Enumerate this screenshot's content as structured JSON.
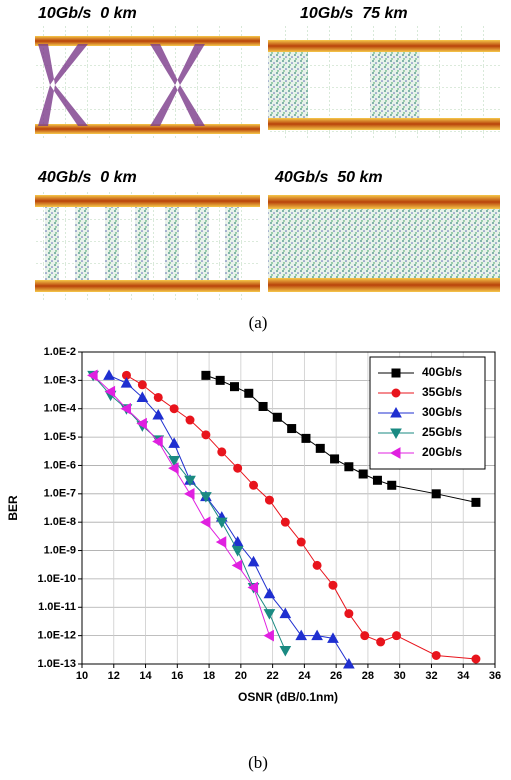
{
  "panels": [
    {
      "label": "10Gb/s  0 km"
    },
    {
      "label": "10Gb/s  75 km"
    },
    {
      "label": "40Gb/s  0 km"
    },
    {
      "label": "40Gb/s  50 km"
    }
  ],
  "captions": [
    "(a)",
    "(b)"
  ],
  "chart_data": {
    "type": "line",
    "y_label": "BER",
    "x_label": "OSNR (dB/0.1nm)",
    "xlim": [
      10,
      36
    ],
    "xticks": [
      10,
      12,
      14,
      16,
      18,
      20,
      22,
      24,
      26,
      28,
      30,
      32,
      34,
      36
    ],
    "ylim": [
      1e-13,
      0.01
    ],
    "log_y": true,
    "grid": true,
    "legend": "top-right",
    "yticks": [
      {
        "value": 0.01,
        "label": "1.0E-2"
      },
      {
        "value": 0.001,
        "label": "1.0E-3"
      },
      {
        "value": 0.0001,
        "label": "1.0E-4"
      },
      {
        "value": 1e-05,
        "label": "1.0E-5"
      },
      {
        "value": 1e-06,
        "label": "1.0E-6"
      },
      {
        "value": 1e-07,
        "label": "1.0E-7"
      },
      {
        "value": 1e-08,
        "label": "1.0E-8"
      },
      {
        "value": 1e-09,
        "label": "1.0E-9"
      },
      {
        "value": 1e-10,
        "label": "1.0E-10"
      },
      {
        "value": 1e-11,
        "label": "1.0E-11"
      },
      {
        "value": 1e-12,
        "label": "1.0E-12"
      },
      {
        "value": 1e-13,
        "label": "1.0E-13"
      }
    ],
    "series": [
      {
        "name": "40Gb/s",
        "color": "#000000",
        "marker": "square",
        "x": [
          17.8,
          18.7,
          19.6,
          20.5,
          21.4,
          22.3,
          23.2,
          24.1,
          25.0,
          25.9,
          26.8,
          27.7,
          28.6,
          29.5,
          32.3,
          34.8
        ],
        "values": [
          0.0015,
          0.001,
          0.0006,
          0.00035,
          0.00012,
          5e-05,
          2e-05,
          9e-06,
          4e-06,
          1.7e-06,
          9e-07,
          5e-07,
          3e-07,
          2e-07,
          1e-07,
          5e-08
        ]
      },
      {
        "name": "35Gb/s",
        "color": "#e8141c",
        "marker": "circle",
        "x": [
          12.8,
          13.8,
          14.8,
          15.8,
          16.8,
          17.8,
          18.8,
          19.8,
          20.8,
          21.8,
          22.8,
          23.8,
          24.8,
          25.8,
          26.8,
          27.8,
          28.8,
          29.8,
          32.3,
          34.8
        ],
        "values": [
          0.0015,
          0.0007,
          0.00025,
          0.0001,
          4e-05,
          1.2e-05,
          3e-06,
          8e-07,
          2e-07,
          6e-08,
          1e-08,
          2e-09,
          3e-10,
          6e-11,
          6e-12,
          1e-12,
          6e-13,
          1e-12,
          2e-13,
          1.5e-13
        ]
      },
      {
        "name": "30Gb/s",
        "color": "#1f2fd0",
        "marker": "triangle-up",
        "x": [
          11.7,
          12.8,
          13.8,
          14.8,
          15.8,
          16.8,
          17.8,
          18.8,
          19.8,
          20.8,
          21.8,
          22.8,
          23.8,
          24.8,
          25.8,
          26.8
        ],
        "values": [
          0.0015,
          0.0008,
          0.00025,
          6e-05,
          6e-06,
          3e-07,
          8e-08,
          1.5e-08,
          2e-09,
          4e-10,
          3e-11,
          6e-12,
          1e-12,
          1e-12,
          8e-13,
          1e-13
        ]
      },
      {
        "name": "25Gb/s",
        "color": "#1a8a82",
        "marker": "triangle-down",
        "x": [
          10.7,
          11.8,
          12.8,
          13.8,
          14.8,
          15.8,
          16.8,
          17.8,
          18.8,
          19.8,
          20.8,
          21.8,
          22.8
        ],
        "values": [
          0.0015,
          0.0003,
          0.0001,
          2.5e-05,
          8e-06,
          1.5e-06,
          3e-07,
          8e-08,
          1e-08,
          1e-09,
          5e-11,
          6e-12,
          3e-13
        ]
      },
      {
        "name": "20Gb/s",
        "color": "#e020e0",
        "marker": "triangle-left",
        "x": [
          10.7,
          11.8,
          12.8,
          13.8,
          14.8,
          15.8,
          16.8,
          17.8,
          18.8,
          19.8,
          20.8,
          21.8
        ],
        "values": [
          0.0015,
          0.0004,
          0.0001,
          3e-05,
          7e-06,
          8e-07,
          1e-07,
          1e-08,
          2e-09,
          3e-10,
          5e-11,
          1e-12
        ]
      }
    ]
  }
}
